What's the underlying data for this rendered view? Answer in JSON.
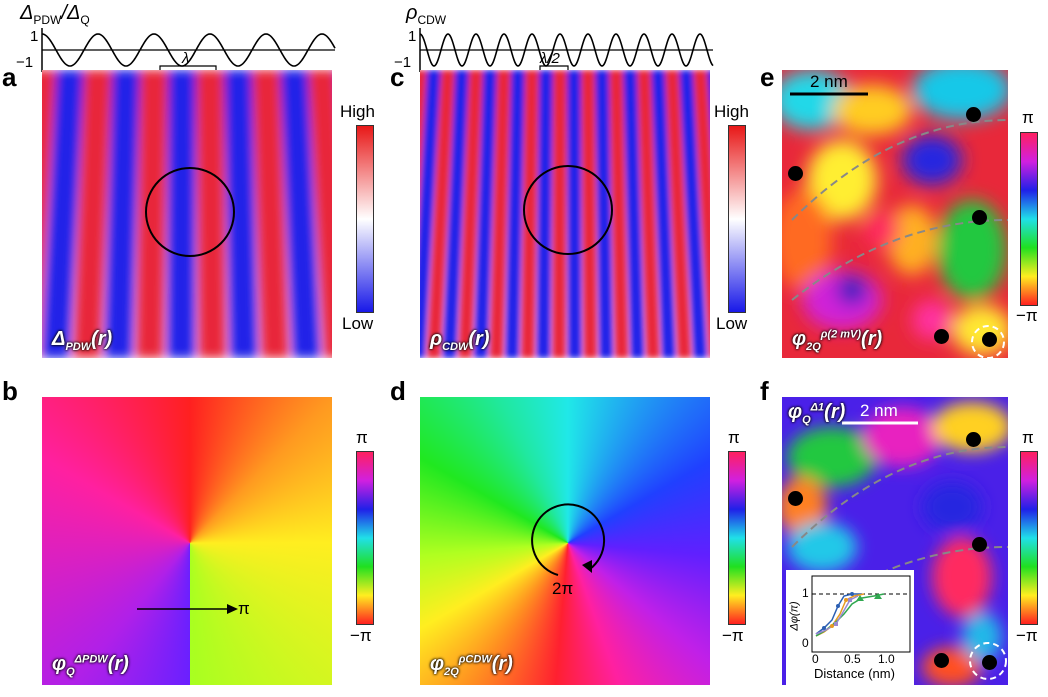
{
  "panels": {
    "a": {
      "label": "a",
      "wave_label": "Δ",
      "wave_sub1": "PDW",
      "wave_slash": "/Δ",
      "wave_sub2": "Q",
      "tick_top": "1",
      "tick_bottom": "−1",
      "period_label": "λ",
      "map_label": "Δ",
      "map_sub": "PDW",
      "map_arg": "(r)",
      "cbar_top": "High",
      "cbar_bottom": "Low"
    },
    "b": {
      "label": "b",
      "map_label": "φ",
      "map_sub": "Q",
      "map_sup": "ΔPDW",
      "map_arg": "(r)",
      "arrow_label": "π",
      "cbar_top": "π",
      "cbar_bottom": "−π"
    },
    "c": {
      "label": "c",
      "wave_label": "ρ",
      "wave_sub": "CDW",
      "tick_top": "1",
      "tick_bottom": "−1",
      "period_label": "λ/2",
      "map_label": "ρ",
      "map_sub": "CDW",
      "map_arg": "(r)",
      "cbar_top": "High",
      "cbar_bottom": "Low"
    },
    "d": {
      "label": "d",
      "map_label": "φ",
      "map_sub": "2Q",
      "map_sup": "ρCDW",
      "map_arg": "(r)",
      "winding_label": "2π",
      "cbar_top": "π",
      "cbar_bottom": "−π"
    },
    "e": {
      "label": "e",
      "scale_label": "2 nm",
      "map_label": "φ",
      "map_sub": "2Q",
      "map_sup": "ρ(2 mV)",
      "map_arg": "(r)",
      "cbar_top": "π",
      "cbar_bottom": "−π"
    },
    "f": {
      "label": "f",
      "scale_label": "2 nm",
      "map_label": "φ",
      "map_sub": "Q",
      "map_sup": "Δ1",
      "map_arg": "(r)",
      "cbar_top": "π",
      "cbar_bottom": "−π"
    }
  },
  "inset": {
    "ylabel": "Δφ(π)",
    "xlabel": "Distance (nm)",
    "yticks": [
      "0",
      "1"
    ],
    "xticks": [
      "0",
      "0.5",
      "1.0"
    ]
  },
  "colors": {
    "red": "#e8283a",
    "blue": "#2020e8"
  }
}
